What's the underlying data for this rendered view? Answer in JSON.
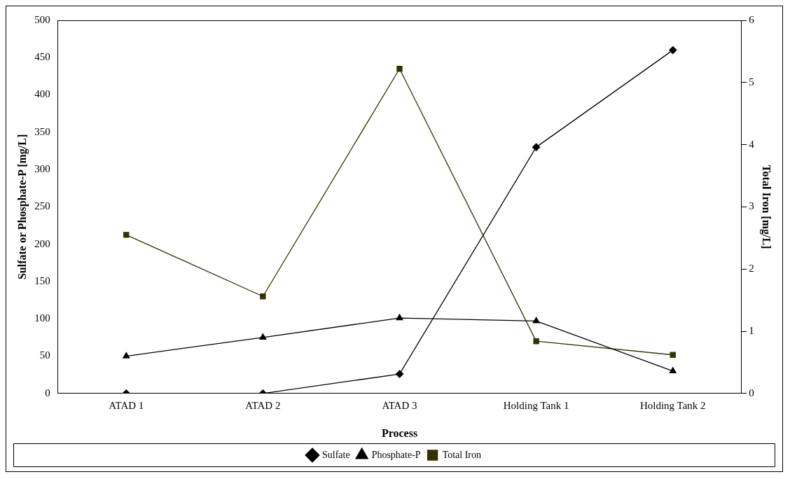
{
  "chart_data": {
    "type": "line",
    "xlabel": "Process",
    "ylabel": "Sulfate or Phosphate-P [mg/L]",
    "y2label": "Total Iron [mg/L]",
    "categories": [
      "ATAD 1",
      "ATAD 2",
      "ATAD 3",
      "Holding Tank 1",
      "Holding Tank 2"
    ],
    "series": [
      {
        "name": "Sulfate",
        "color": "#000000",
        "marker": "diamond",
        "values": [
          0,
          0,
          26,
          330,
          460
        ]
      },
      {
        "name": "Phosphate-P",
        "color": "#000000",
        "marker": "triangle",
        "values": [
          50,
          75,
          101,
          97,
          30
        ]
      },
      {
        "name": "Total Iron",
        "color": "#333300",
        "marker": "square",
        "axis": "y2",
        "values": [
          2.55,
          1.56,
          5.22,
          0.84,
          0.62
        ]
      }
    ],
    "ylim": [
      0,
      500
    ],
    "yticks": [
      0,
      50,
      100,
      150,
      200,
      250,
      300,
      350,
      400,
      450,
      500
    ],
    "y2lim": [
      0,
      6
    ],
    "y2ticks": [
      0,
      1,
      2,
      3,
      4,
      5,
      6
    ],
    "grid": false,
    "legend": "bottom",
    "line_style": "solid"
  }
}
